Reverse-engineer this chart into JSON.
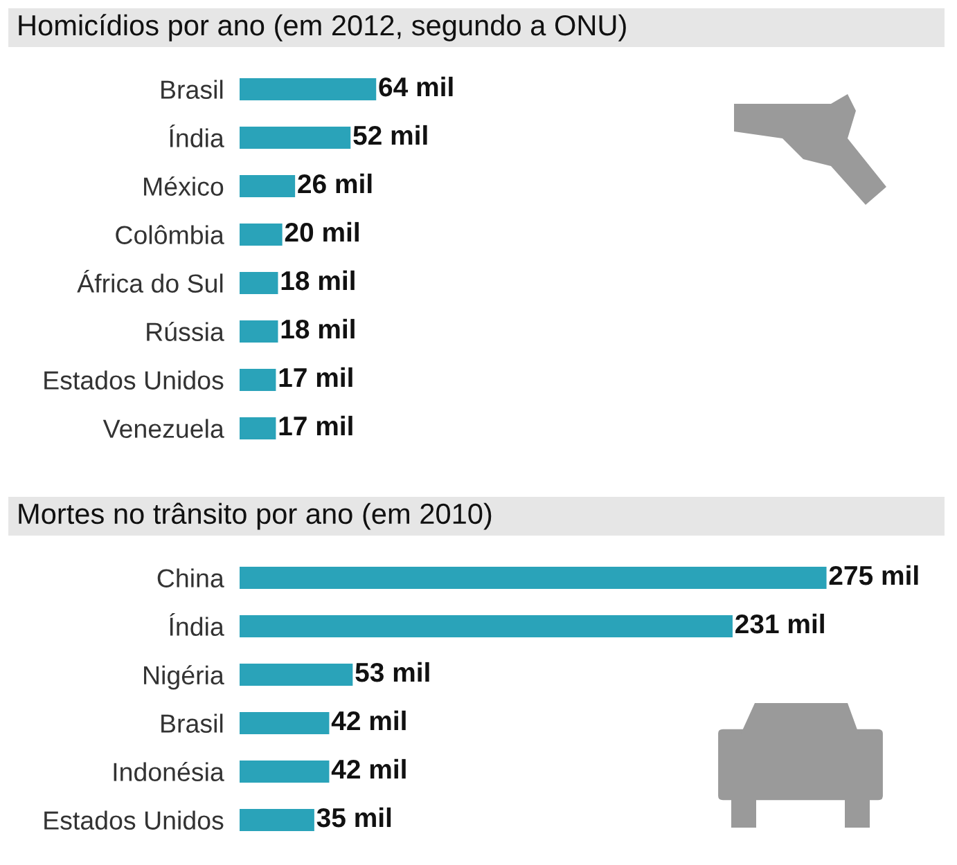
{
  "chart_data": [
    {
      "type": "bar",
      "orientation": "horizontal",
      "title": "Homicídios por ano (em 2012, segundo a ONU)",
      "categories": [
        "Brasil",
        "Índia",
        "México",
        "Colômbia",
        "África do Sul",
        "Rússia",
        "Estados Unidos",
        "Venezuela"
      ],
      "values": [
        64,
        52,
        26,
        20,
        18,
        18,
        17,
        17
      ],
      "value_labels": [
        "64 mil",
        "52 mil",
        "26 mil",
        "20 mil",
        "18 mil",
        "18 mil",
        "17 mil",
        "17 mil"
      ],
      "color": "#2aa3b9"
    },
    {
      "type": "bar",
      "orientation": "horizontal",
      "title": "Mortes no trânsito por ano (em 2010)",
      "categories": [
        "China",
        "Índia",
        "Nigéria",
        "Brasil",
        "Indonésia",
        "Estados Unidos"
      ],
      "values": [
        275,
        231,
        53,
        42,
        42,
        35
      ],
      "value_labels": [
        "275 mil",
        "231 mil",
        "53 mil",
        "42 mil",
        "42 mil",
        "35 mil"
      ],
      "color": "#2aa3b9"
    }
  ]
}
